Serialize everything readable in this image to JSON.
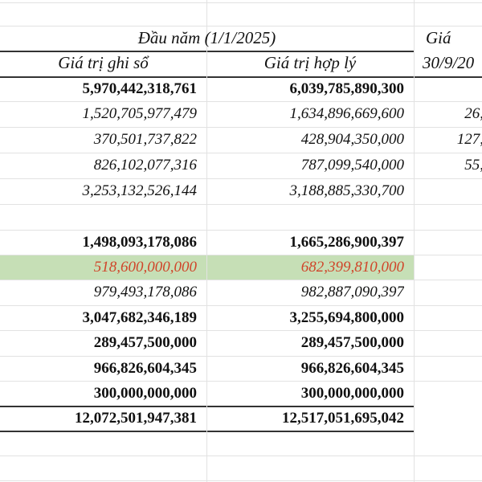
{
  "header": {
    "group_title": "Đầu năm (1/1/2025)",
    "col_book_value": "Giá trị ghi sổ",
    "col_fair_value": "Giá trị hợp lý",
    "col_next_line1": "Giá",
    "col_next_line2": "30/9/20"
  },
  "colors": {
    "highlight_row": "#c6dfb6",
    "highlight_text": "#d0452a"
  },
  "rows": [
    {
      "book": "5,970,442,318,761",
      "fair": "6,039,785,890,300",
      "next": "",
      "style": "bold"
    },
    {
      "book": "1,520,705,977,479",
      "fair": "1,634,896,669,600",
      "next": "26,",
      "style": "italic"
    },
    {
      "book": "370,501,737,822",
      "fair": "428,904,350,000",
      "next": "127,",
      "style": "italic"
    },
    {
      "book": "826,102,077,316",
      "fair": "787,099,540,000",
      "next": "55,",
      "style": "italic"
    },
    {
      "book": "3,253,132,526,144",
      "fair": "3,188,885,330,700",
      "next": "",
      "style": "italic"
    },
    {
      "book": "",
      "fair": "",
      "next": "",
      "style": "normal"
    },
    {
      "book": "1,498,093,178,086",
      "fair": "1,665,286,900,397",
      "next": "",
      "style": "bold"
    },
    {
      "book": "518,600,000,000",
      "fair": "682,399,810,000",
      "next": "",
      "style": "highlight"
    },
    {
      "book": "979,493,178,086",
      "fair": "982,887,090,397",
      "next": "",
      "style": "italic"
    },
    {
      "book": "3,047,682,346,189",
      "fair": "3,255,694,800,000",
      "next": "",
      "style": "bold"
    },
    {
      "book": "289,457,500,000",
      "fair": "289,457,500,000",
      "next": "",
      "style": "bold"
    },
    {
      "book": "966,826,604,345",
      "fair": "966,826,604,345",
      "next": "",
      "style": "bold"
    },
    {
      "book": "300,000,000,000",
      "fair": "300,000,000,000",
      "next": "",
      "style": "bold"
    },
    {
      "book": "12,072,501,947,381",
      "fair": "12,517,051,695,042",
      "next": "",
      "style": "bold"
    }
  ]
}
